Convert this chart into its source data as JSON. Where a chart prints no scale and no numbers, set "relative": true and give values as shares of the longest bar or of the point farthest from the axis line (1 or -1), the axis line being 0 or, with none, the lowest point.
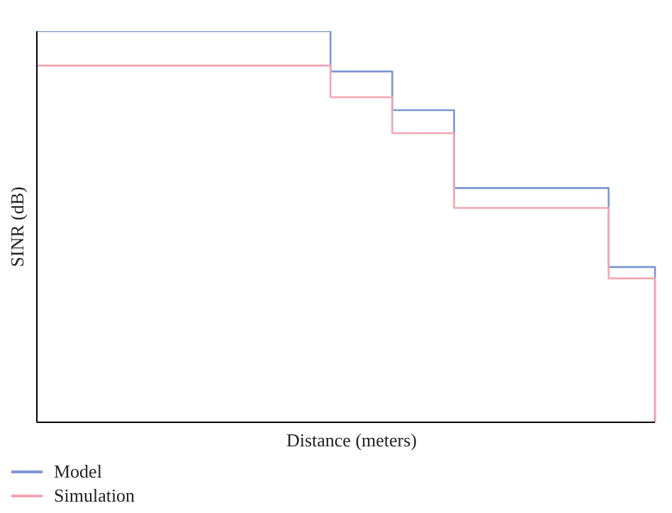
{
  "chart_data": {
    "type": "step",
    "xlabel": "Distance (meters)",
    "ylabel": "SINR (dB)",
    "relative": true,
    "categories": [
      null,
      null,
      null,
      null,
      null,
      null,
      null,
      null,
      null,
      null,
      null,
      null,
      null,
      null,
      null,
      null,
      null,
      null,
      null,
      null,
      null,
      null,
      null,
      null,
      null,
      null,
      null,
      null,
      null,
      null,
      null,
      null,
      null,
      null,
      null,
      null,
      null,
      null,
      null,
      null,
      null
    ],
    "series": [
      {
        "name": "Model",
        "color": "#7b96d4",
        "values": [
          1,
          1,
          1,
          1,
          1,
          1,
          1,
          1,
          1,
          1,
          1,
          1,
          1,
          1,
          1,
          1,
          1,
          1,
          1,
          0.897,
          0.897,
          0.897,
          0.897,
          0.798,
          0.798,
          0.798,
          0.798,
          0.599,
          0.599,
          0.599,
          0.599,
          0.599,
          0.599,
          0.599,
          0.599,
          0.599,
          0.599,
          0.397,
          0.397,
          0.397,
          0
        ]
      },
      {
        "name": "Simulation",
        "color": "#f4a6b0",
        "values": [
          0.912,
          0.912,
          0.912,
          0.912,
          0.912,
          0.912,
          0.912,
          0.912,
          0.912,
          0.912,
          0.912,
          0.912,
          0.912,
          0.912,
          0.912,
          0.912,
          0.912,
          0.912,
          0.912,
          0.831,
          0.831,
          0.831,
          0.831,
          0.739,
          0.739,
          0.739,
          0.739,
          0.548,
          0.548,
          0.548,
          0.548,
          0.548,
          0.548,
          0.548,
          0.548,
          0.548,
          0.548,
          0.368,
          0.368,
          0.368,
          0
        ]
      }
    ],
    "legend": "bottom left",
    "grid": false
  }
}
